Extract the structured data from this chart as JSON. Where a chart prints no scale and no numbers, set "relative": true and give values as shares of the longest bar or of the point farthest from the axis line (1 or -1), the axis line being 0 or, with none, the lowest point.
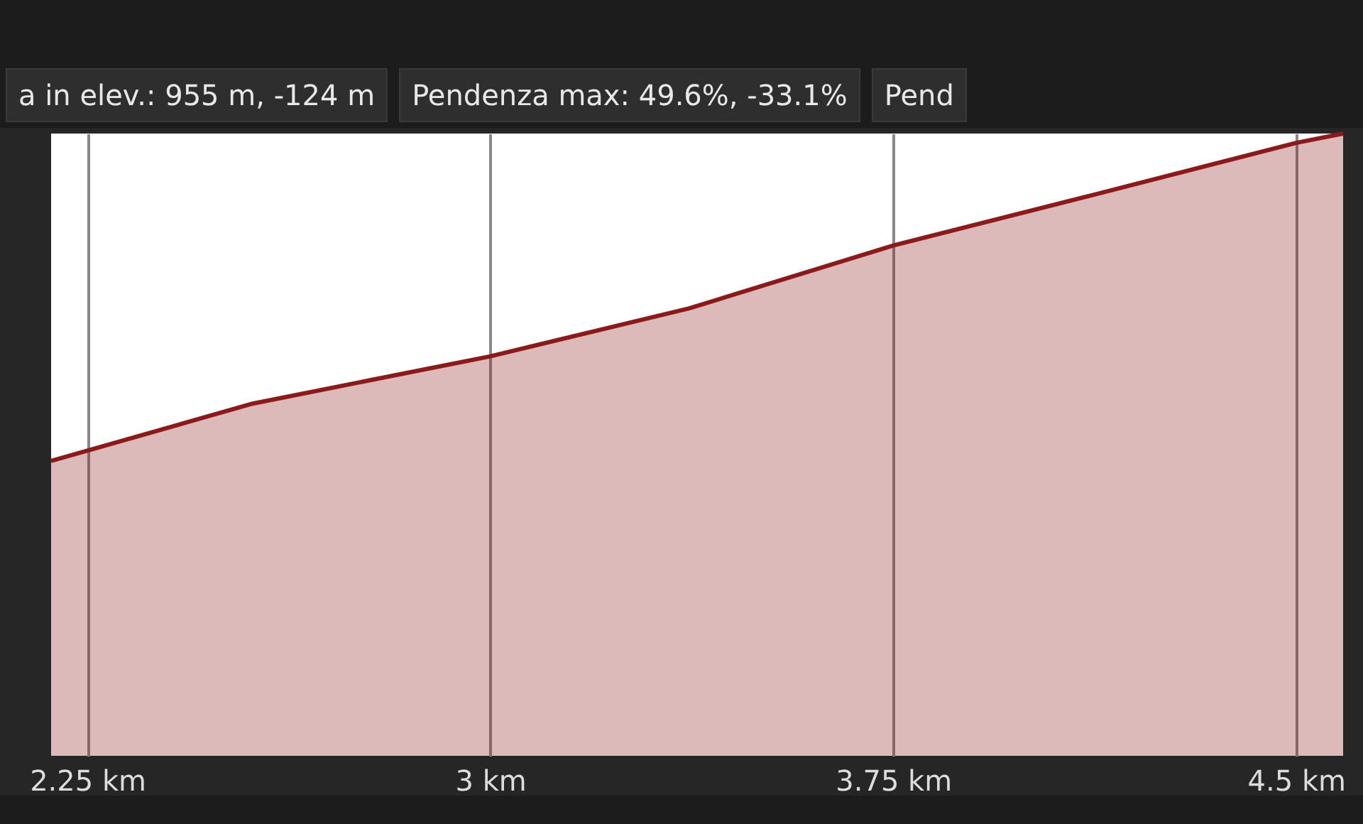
{
  "chart_data": {
    "type": "area",
    "relative": true,
    "annotations": [
      "a in elev.: 955 m, -124 m",
      "Pendenza max: 49.6%, -33.1%",
      "Pend"
    ],
    "x": [
      2.1825,
      2.5575,
      3.0,
      3.37,
      3.75,
      4.125,
      4.5,
      4.5875
    ],
    "series": [
      {
        "color": "#8b1a1a",
        "values": [
          0.474,
          0.566,
          0.642,
          0.719,
          0.82,
          0.902,
          0.985,
          1.0
        ]
      }
    ],
    "xlim": [
      2.1825,
      4.5875
    ],
    "xticks": [
      {
        "value": 2.25,
        "label": "2.25 km"
      },
      {
        "value": 3,
        "label": "3 km"
      },
      {
        "value": 3.75,
        "label": "3.75 km"
      },
      {
        "value": 4.5,
        "label": "4.5 km"
      }
    ],
    "grid": "x"
  }
}
